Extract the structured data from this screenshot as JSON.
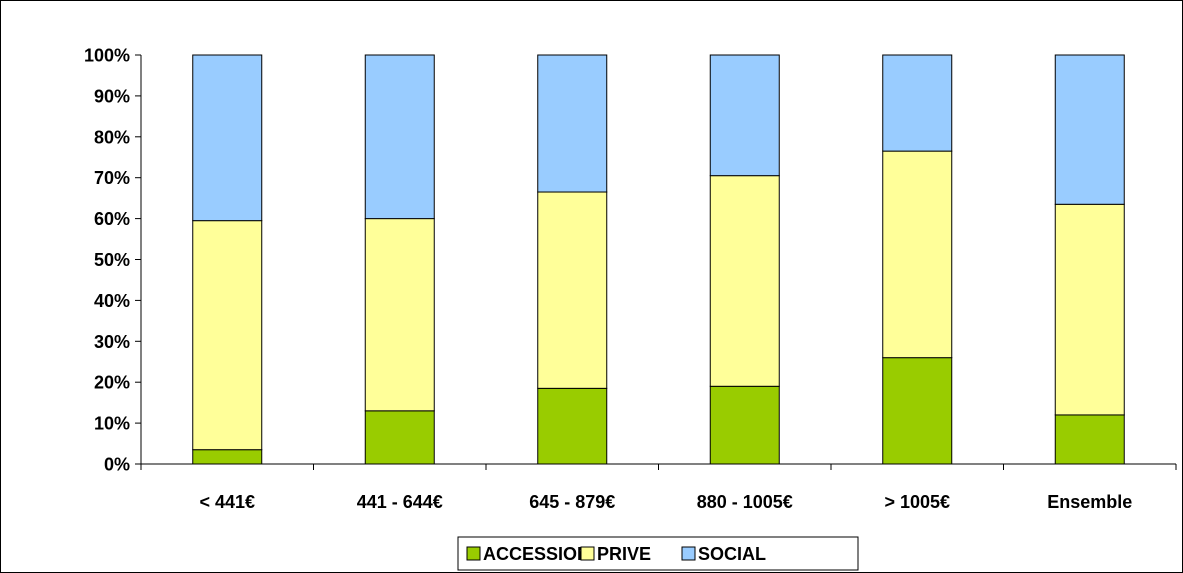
{
  "chart_data": {
    "type": "bar",
    "stacked": true,
    "percent": true,
    "categories": [
      "< 441€",
      "441 - 644€",
      "645 - 879€",
      "880 - 1005€",
      "> 1005€",
      "Ensemble"
    ],
    "series": [
      {
        "name": "ACCESSION",
        "color": "#99cc00",
        "values": [
          3.5,
          13,
          18.5,
          19,
          26,
          12
        ]
      },
      {
        "name": "PRIVE",
        "color": "#ffff99",
        "values": [
          56,
          47,
          48,
          51.5,
          50.5,
          51.5
        ]
      },
      {
        "name": "SOCIAL",
        "color": "#99ccff",
        "values": [
          40.5,
          40,
          33.5,
          29.5,
          23.5,
          36.5
        ]
      }
    ],
    "yticks": [
      "0%",
      "10%",
      "20%",
      "30%",
      "40%",
      "50%",
      "60%",
      "70%",
      "80%",
      "90%",
      "100%"
    ],
    "ylim": [
      0,
      100
    ],
    "title": "",
    "xlabel": "",
    "ylabel": "",
    "grid": false,
    "legend_position": "bottom"
  }
}
